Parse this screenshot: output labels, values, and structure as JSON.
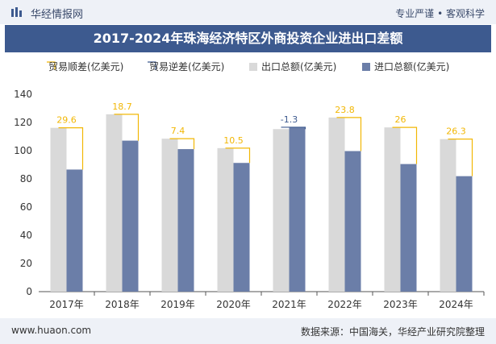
{
  "header": {
    "logo_text": "华经情报网",
    "tagline": "专业严谨 • 客观科学"
  },
  "title": "2017-2024年珠海经济特区外商投资企业进出口差额",
  "legend": {
    "surplus": "贸易顺差(亿美元)",
    "deficit": "贸易逆差(亿美元)",
    "export": "出口总额(亿美元)",
    "import": "进口总额(亿美元)"
  },
  "footer": {
    "url": "www.huaon.com",
    "source": "数据来源：中国海关，华经产业研究院整理"
  },
  "colors": {
    "export": "#d9d9d9",
    "import": "#6b7ea8",
    "surplus": "#f2b705",
    "deficit": "#3d5a8f",
    "title_bg": "#3d5a8f"
  },
  "chart_data": {
    "type": "bar",
    "categories": [
      "2017年",
      "2018年",
      "2019年",
      "2020年",
      "2021年",
      "2022年",
      "2023年",
      "2024年"
    ],
    "series": [
      {
        "name": "出口总额(亿美元)",
        "values": [
          116.2,
          125.8,
          108.5,
          101.8,
          115.3,
          123.5,
          116.5,
          108.2
        ]
      },
      {
        "name": "进口总额(亿美元)",
        "values": [
          86.6,
          107.1,
          101.1,
          91.3,
          116.6,
          99.7,
          90.5,
          81.9
        ]
      }
    ],
    "balance": {
      "values": [
        29.6,
        18.7,
        7.4,
        10.5,
        -1.3,
        23.8,
        26,
        26.3
      ],
      "labels": [
        "29.6",
        "18.7",
        "7.4",
        "10.5",
        "-1.3",
        "23.8",
        "26",
        "26.3"
      ]
    },
    "yticks": [
      "0",
      "20",
      "40",
      "60",
      "80",
      "100",
      "120",
      "140"
    ],
    "ylim": [
      0,
      140
    ],
    "legend_position": "top"
  }
}
